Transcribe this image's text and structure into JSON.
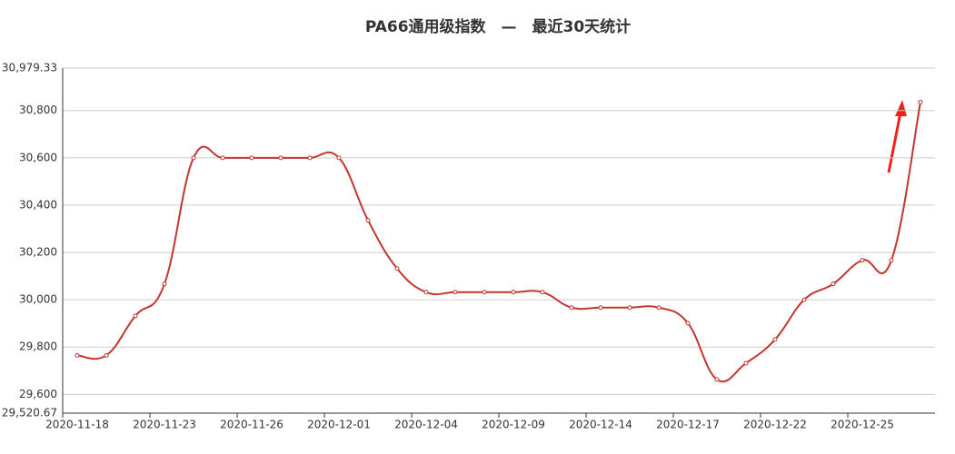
{
  "chart_data": {
    "type": "line",
    "title": "PA66通用级指数　—　最近30天统计",
    "categories": [
      "2020-11-18",
      null,
      null,
      "2020-11-23",
      null,
      null,
      "2020-11-26",
      null,
      null,
      "2020-12-01",
      null,
      null,
      "2020-12-04",
      null,
      null,
      "2020-12-09",
      null,
      null,
      "2020-12-14",
      null,
      null,
      "2020-12-17",
      null,
      null,
      "2020-12-22",
      null,
      null,
      "2020-12-25",
      null,
      null
    ],
    "series": [
      {
        "color": "#c23531",
        "values": [
          29765,
          29765,
          29932,
          30067,
          30600,
          30600,
          30600,
          30600,
          30600,
          30600,
          30336,
          30132,
          30032,
          30032,
          30032,
          30032,
          30032,
          29967,
          29967,
          29967,
          29967,
          29901,
          29663,
          29732,
          29832,
          30000,
          30067,
          30167,
          30167,
          30836
        ]
      }
    ],
    "ylim": [
      29520.67,
      30979.33
    ],
    "yticks": [
      {
        "value": 29520.67,
        "label": "29,520.67"
      },
      {
        "value": 29600,
        "label": "29,600"
      },
      {
        "value": 29800,
        "label": "29,800"
      },
      {
        "value": 30000,
        "label": "30,000"
      },
      {
        "value": 30200,
        "label": "30,200"
      },
      {
        "value": 30400,
        "label": "30,400"
      },
      {
        "value": 30600,
        "label": "30,600"
      },
      {
        "value": 30800,
        "label": "30,800"
      },
      {
        "value": 30979.33,
        "label": "30,979.33"
      }
    ],
    "grid": true
  }
}
